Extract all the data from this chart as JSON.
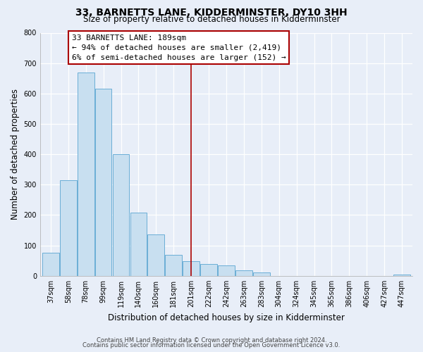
{
  "title": "33, BARNETTS LANE, KIDDERMINSTER, DY10 3HH",
  "subtitle": "Size of property relative to detached houses in Kidderminster",
  "xlabel": "Distribution of detached houses by size in Kidderminster",
  "ylabel": "Number of detached properties",
  "bar_labels": [
    "37sqm",
    "58sqm",
    "78sqm",
    "99sqm",
    "119sqm",
    "140sqm",
    "160sqm",
    "181sqm",
    "201sqm",
    "222sqm",
    "242sqm",
    "263sqm",
    "283sqm",
    "304sqm",
    "324sqm",
    "345sqm",
    "365sqm",
    "386sqm",
    "406sqm",
    "427sqm",
    "447sqm"
  ],
  "bar_values": [
    75,
    315,
    668,
    615,
    400,
    207,
    137,
    70,
    48,
    40,
    35,
    18,
    12,
    0,
    0,
    0,
    0,
    0,
    0,
    0,
    5
  ],
  "bar_color": "#c8dff0",
  "bar_edge_color": "#6aaed6",
  "ylim": [
    0,
    800
  ],
  "yticks": [
    0,
    100,
    200,
    300,
    400,
    500,
    600,
    700,
    800
  ],
  "vline_x": 8.0,
  "vline_color": "#aa0000",
  "annotation_title": "33 BARNETTS LANE: 189sqm",
  "annotation_line1": "← 94% of detached houses are smaller (2,419)",
  "annotation_line2": "6% of semi-detached houses are larger (152) →",
  "footer1": "Contains HM Land Registry data © Crown copyright and database right 2024.",
  "footer2": "Contains public sector information licensed under the Open Government Licence v3.0.",
  "bg_color": "#e8eef8",
  "plot_bg_color": "#e8eef8",
  "title_fontsize": 10,
  "subtitle_fontsize": 8.5,
  "axis_label_fontsize": 8.5,
  "tick_fontsize": 7,
  "footer_fontsize": 6,
  "annotation_fontsize": 8
}
